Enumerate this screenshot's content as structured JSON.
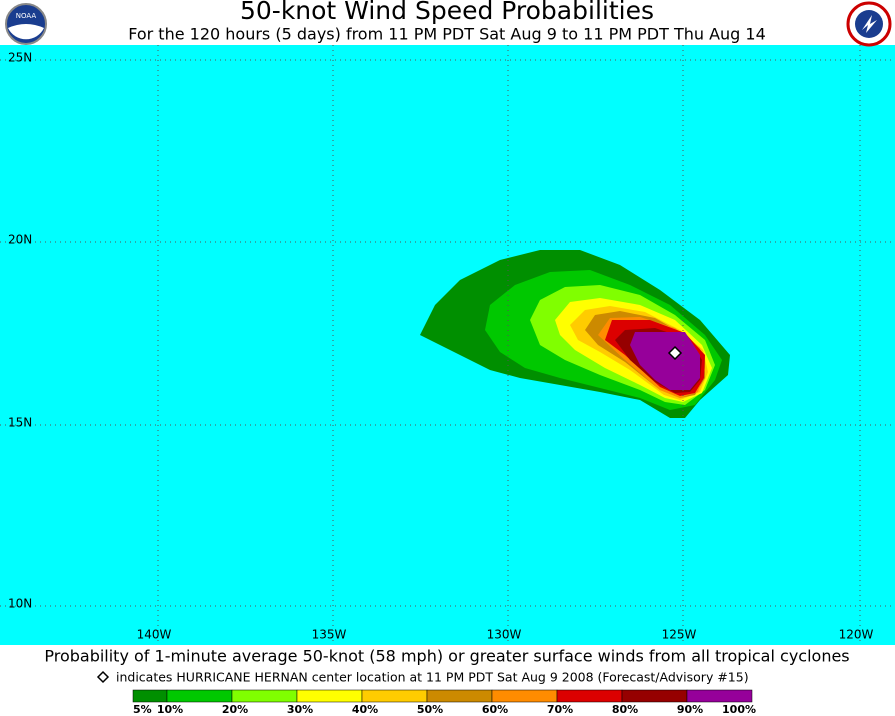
{
  "header": {
    "title": "50-knot Wind Speed Probabilities",
    "subtitle": "For the 120 hours (5 days) from 11 PM PDT Sat Aug 9 to 11 PM PDT Thu Aug 14"
  },
  "map": {
    "latitude_labels": [
      "25N",
      "20N",
      "15N",
      "10N"
    ],
    "longitude_labels": [
      "140W",
      "135W",
      "130W",
      "125W",
      "120W"
    ]
  },
  "footer": {
    "caption": "Probability of 1-minute average 50-knot (58 mph) or greater surface winds from all tropical cyclones",
    "note": "indicates HURRICANE HERNAN center location at 11 PM PDT Sat Aug 9 2008 (Forecast/Advisory #15)"
  },
  "legend": {
    "colors": [
      "#008f00",
      "#00c800",
      "#80ff00",
      "#ffff00",
      "#ffcc00",
      "#cc8a00",
      "#ff8c00",
      "#dc0000",
      "#960000",
      "#96009a"
    ],
    "labels": [
      "5%",
      "10%",
      "20%",
      "30%",
      "40%",
      "50%",
      "60%",
      "70%",
      "80%",
      "90%",
      "100%"
    ]
  }
}
